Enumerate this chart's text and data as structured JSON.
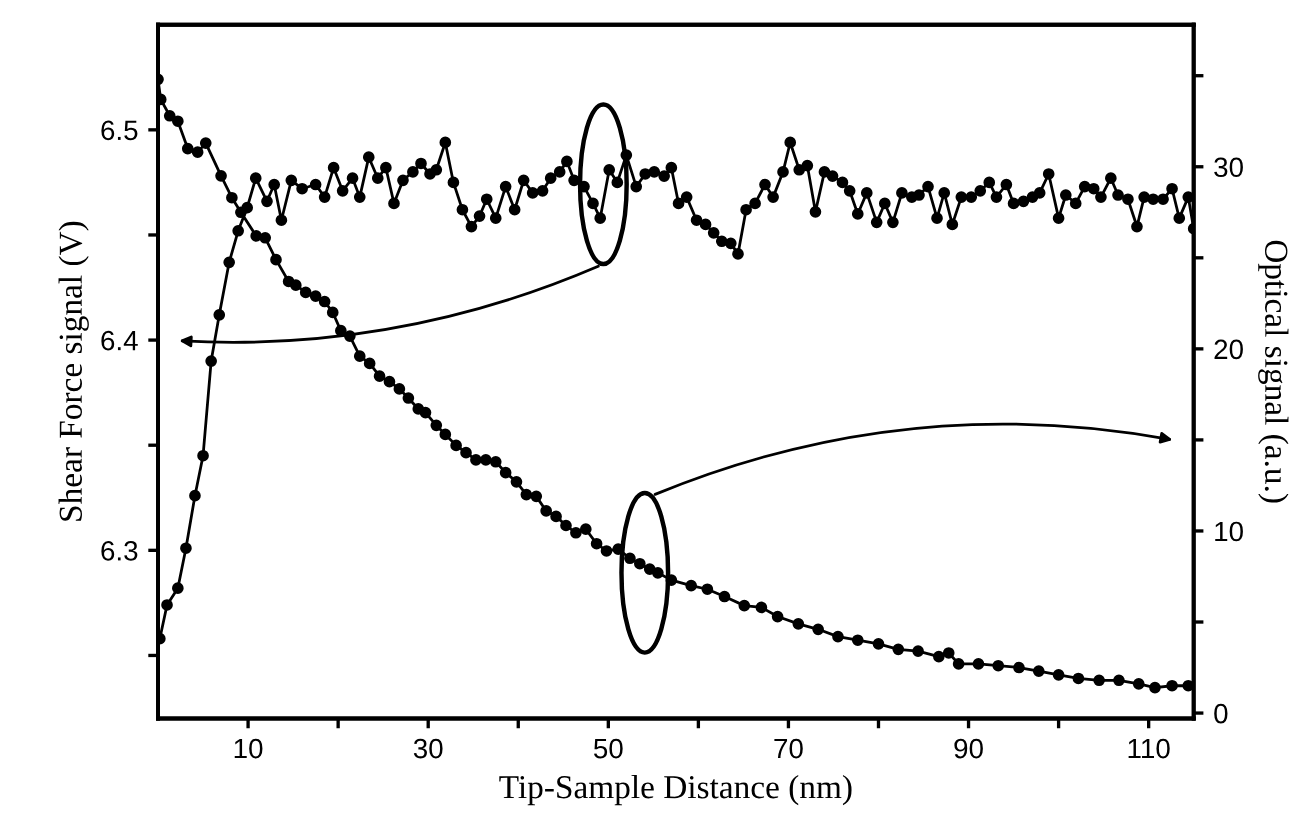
{
  "chart_data": {
    "type": "line",
    "xlabel": "Tip-Sample Distance (nm)",
    "ylabel": "Shear Force signal (V)",
    "y2label": "Optical signal (a.u.)",
    "xlim": [
      0,
      115
    ],
    "xticks": [
      10,
      {
        "value": 20,
        "label": null
      },
      30,
      {
        "value": 40,
        "label": null
      },
      50,
      {
        "value": 60,
        "label": null
      },
      70,
      {
        "value": 80,
        "label": null
      },
      90,
      {
        "value": 100,
        "label": null
      },
      110
    ],
    "ylim": [
      6.22,
      6.55
    ],
    "yticks": [
      {
        "value": 6.25,
        "label": null
      },
      6.3,
      {
        "value": 6.35,
        "label": null
      },
      6.4,
      {
        "value": 6.45,
        "label": null
      },
      6.5
    ],
    "y2lim": [
      -0.3,
      37.8
    ],
    "y2ticks": [
      0,
      {
        "value": 5,
        "label": null
      },
      10,
      {
        "value": 15,
        "label": null
      },
      20,
      {
        "value": 25,
        "label": null
      },
      30,
      {
        "value": 35,
        "label": null
      }
    ],
    "marker": "circle",
    "line_style": "solid",
    "series": [
      {
        "color": "#000000",
        "x": [
          0.2,
          1.0,
          2.2,
          3.1,
          4.1,
          5.0,
          5.9,
          6.8,
          7.9,
          8.9,
          9.9,
          10.85,
          12.1,
          12.9,
          13.7,
          14.8,
          16.0,
          17.5,
          18.5,
          19.5,
          20.5,
          21.6,
          22.4,
          23.4,
          24.4,
          25.3,
          26.2,
          27.2,
          28.3,
          29.2,
          30.2,
          30.9,
          31.9,
          32.8,
          33.8,
          34.8,
          35.7,
          36.5,
          37.5,
          38.6,
          39.6,
          40.6,
          41.6,
          42.7,
          43.6,
          44.6,
          45.4,
          46.2,
          47.3,
          48.3,
          49.1,
          50.1,
          51.0,
          52.0,
          53.1,
          54.1,
          55.1,
          56.2,
          57.0,
          57.8,
          58.7,
          59.8,
          60.8,
          61.7,
          62.6,
          63.6,
          64.4,
          65.3,
          66.3,
          67.4,
          68.3,
          69.4,
          70.2,
          71.2,
          72.1,
          73.0,
          74.0,
          74.9,
          76.0,
          76.8,
          77.7,
          78.7,
          79.8,
          80.7,
          81.6,
          82.6,
          83.7,
          84.5,
          85.5,
          86.5,
          87.3,
          88.2,
          89.2,
          90.3,
          91.3,
          92.3,
          93.1,
          94.2,
          95.0,
          96.1,
          97.1,
          97.9,
          98.9,
          100.0,
          100.8,
          101.9,
          102.9,
          103.9,
          104.7,
          105.8,
          106.6,
          107.7,
          108.7,
          109.5,
          110.5,
          111.6,
          112.6,
          113.4,
          114.4,
          115.0
        ],
        "values": [
          6.258,
          6.274,
          6.282,
          6.301,
          6.326,
          6.345,
          6.39,
          6.412,
          6.437,
          6.452,
          6.463,
          6.477,
          6.466,
          6.474,
          6.457,
          6.476,
          6.472,
          6.474,
          6.468,
          6.482,
          6.471,
          6.477,
          6.468,
          6.487,
          6.477,
          6.482,
          6.465,
          6.476,
          6.48,
          6.484,
          6.479,
          6.481,
          6.494,
          6.475,
          6.462,
          6.454,
          6.459,
          6.467,
          6.458,
          6.473,
          6.462,
          6.476,
          6.47,
          6.471,
          6.477,
          6.48,
          6.485,
          6.476,
          6.473,
          6.465,
          6.458,
          6.481,
          6.475,
          6.488,
          6.473,
          6.479,
          6.48,
          6.478,
          6.482,
          6.465,
          6.468,
          6.457,
          6.455,
          6.451,
          6.447,
          6.446,
          6.441,
          6.462,
          6.465,
          6.474,
          6.468,
          6.48,
          6.494,
          6.481,
          6.483,
          6.461,
          6.48,
          6.478,
          6.475,
          6.471,
          6.46,
          6.47,
          6.456,
          6.465,
          6.456,
          6.47,
          6.468,
          6.469,
          6.473,
          6.458,
          6.47,
          6.455,
          6.468,
          6.468,
          6.471,
          6.475,
          6.468,
          6.474,
          6.465,
          6.466,
          6.468,
          6.47,
          6.479,
          6.458,
          6.469,
          6.465,
          6.473,
          6.472,
          6.468,
          6.477,
          6.469,
          6.467,
          6.454,
          6.468,
          6.467,
          6.467,
          6.472,
          6.458,
          6.468,
          6.453
        ]
      },
      {
        "color": "#000000",
        "axis": "y2",
        "x": [
          0.0,
          0.3,
          1.3,
          2.2,
          3.3,
          4.4,
          5.3,
          7.0,
          8.2,
          9.2,
          10.9,
          11.9,
          13.1,
          14.5,
          15.3,
          16.4,
          17.5,
          18.5,
          19.4,
          20.3,
          21.3,
          22.4,
          23.5,
          24.6,
          25.7,
          26.8,
          27.8,
          28.9,
          29.7,
          30.9,
          31.9,
          33.1,
          34.2,
          35.3,
          36.4,
          37.5,
          38.6,
          39.8,
          40.9,
          42.0,
          43.1,
          44.2,
          45.3,
          46.4,
          47.5,
          48.7,
          49.8,
          51.1,
          52.4,
          53.5,
          54.6,
          55.5,
          57.0,
          59.2,
          61.0,
          62.9,
          65.1,
          67.0,
          68.8,
          71.1,
          73.3,
          75.5,
          77.7,
          80.0,
          82.2,
          84.4,
          86.7,
          87.8,
          88.9,
          91.1,
          93.3,
          95.6,
          97.8,
          100.0,
          102.2,
          104.5,
          106.7,
          108.9,
          110.7,
          112.6,
          114.4
        ],
        "values": [
          34.8,
          33.7,
          32.8,
          32.5,
          31.0,
          30.8,
          31.3,
          29.5,
          28.3,
          27.5,
          26.2,
          26.1,
          24.9,
          23.7,
          23.5,
          23.1,
          22.9,
          22.6,
          22.0,
          21.0,
          20.7,
          19.6,
          19.2,
          18.5,
          18.2,
          17.8,
          17.3,
          16.7,
          16.5,
          15.8,
          15.3,
          14.7,
          14.3,
          13.9,
          13.9,
          13.8,
          13.2,
          12.7,
          12.0,
          11.9,
          11.1,
          10.8,
          10.3,
          9.9,
          10.1,
          9.3,
          8.9,
          9.0,
          8.5,
          8.2,
          7.9,
          7.7,
          7.3,
          7.0,
          6.8,
          6.4,
          5.9,
          5.8,
          5.3,
          4.9,
          4.6,
          4.2,
          4.0,
          3.8,
          3.5,
          3.4,
          3.1,
          3.3,
          2.7,
          2.7,
          2.6,
          2.5,
          2.3,
          2.1,
          1.9,
          1.8,
          1.8,
          1.6,
          1.4,
          1.5,
          1.5
        ]
      }
    ]
  }
}
